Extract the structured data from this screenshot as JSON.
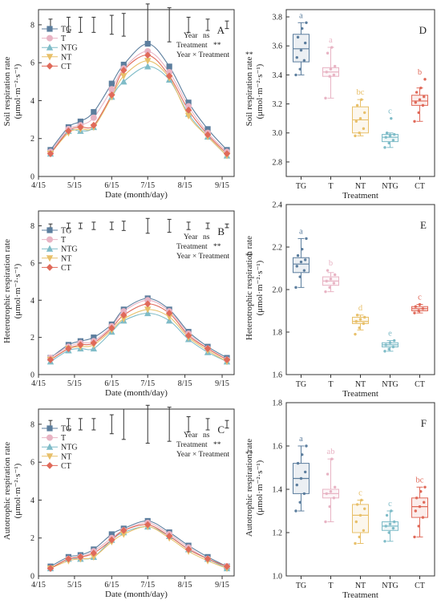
{
  "chart_data": [
    {
      "id": "A",
      "type": "line",
      "panel_label": "A",
      "xlabel": "Date (month/day)",
      "ylabel": "Soil respiration rate",
      "yunit": "(μmol·m⁻²·s⁻¹)",
      "x_ticks": [
        "4/15",
        "5/15",
        "6/15",
        "7/15",
        "8/15",
        "9/15"
      ],
      "y_ticks": [
        0,
        2,
        4,
        6,
        8
      ],
      "ylim": [
        0,
        8.8
      ],
      "x_dates": [
        "4/25",
        "5/10",
        "5/20",
        "5/31",
        "6/15",
        "6/25",
        "7/15",
        "8/2",
        "8/18",
        "9/3",
        "9/19"
      ],
      "series": [
        {
          "name": "TG",
          "color": "#5c7e9e",
          "marker": "square",
          "values": [
            1.4,
            2.6,
            2.9,
            3.4,
            4.9,
            5.9,
            7.0,
            5.8,
            3.9,
            2.5,
            1.4
          ]
        },
        {
          "name": "T",
          "color": "#e8b4c4",
          "marker": "circle",
          "values": [
            1.3,
            2.5,
            2.7,
            3.1,
            4.6,
            5.7,
            6.6,
            5.5,
            3.7,
            2.3,
            1.3
          ]
        },
        {
          "name": "NTG",
          "color": "#7fbcc8",
          "marker": "triangle-up",
          "values": [
            1.2,
            2.4,
            2.4,
            2.6,
            4.2,
            5.0,
            5.8,
            5.1,
            3.3,
            2.1,
            1.1
          ]
        },
        {
          "name": "NT",
          "color": "#e8c06a",
          "marker": "triangle-down",
          "values": [
            1.2,
            2.3,
            2.5,
            2.6,
            4.2,
            5.3,
            6.1,
            5.2,
            3.2,
            2.1,
            1.1
          ]
        },
        {
          "name": "CT",
          "color": "#e06a5a",
          "marker": "diamond",
          "values": [
            1.2,
            2.4,
            2.6,
            2.7,
            4.3,
            5.6,
            6.4,
            5.3,
            3.5,
            2.2,
            1.2
          ]
        }
      ],
      "error_bars": [
        0.3,
        0.4,
        0.4,
        0.4,
        0.5,
        0.6,
        1.1,
        0.9,
        0.4,
        0.3,
        0.2
      ],
      "stats": [
        {
          "label": "Year",
          "value": "ns"
        },
        {
          "label": "Treatment",
          "value": "**"
        },
        {
          "label": "Year × Treatment",
          "value": "**"
        }
      ],
      "legend_position": "top-left"
    },
    {
      "id": "D",
      "type": "box",
      "panel_label": "D",
      "xlabel": "Treatment",
      "ylabel": "Soil respiration rate",
      "yunit": "(μmol·m⁻²·s⁻¹)",
      "categories": [
        "TG",
        "T",
        "NT",
        "NTG",
        "CT"
      ],
      "y_ticks": [
        2.8,
        3.0,
        3.2,
        3.4,
        3.6,
        3.8
      ],
      "ylim": [
        2.7,
        3.85
      ],
      "boxes": [
        {
          "color": "#5c7e9e",
          "letter": "a",
          "min": 3.4,
          "q1": 3.49,
          "median": 3.58,
          "q3": 3.68,
          "max": 3.76,
          "points": [
            3.4,
            3.44,
            3.5,
            3.52,
            3.57,
            3.62,
            3.66,
            3.72,
            3.76
          ]
        },
        {
          "color": "#e8b4c4",
          "letter": "a",
          "min": 3.24,
          "q1": 3.39,
          "median": 3.42,
          "q3": 3.45,
          "max": 3.59,
          "points": [
            3.24,
            3.39,
            3.4,
            3.42,
            3.44,
            3.46,
            3.55,
            3.59
          ]
        },
        {
          "color": "#e8c06a",
          "letter": "bc",
          "min": 2.98,
          "q1": 3.0,
          "median": 3.09,
          "q3": 3.18,
          "max": 3.23,
          "points": [
            2.98,
            3.0,
            3.03,
            3.08,
            3.1,
            3.14,
            3.19,
            3.23
          ]
        },
        {
          "color": "#7fbcc8",
          "letter": "c",
          "min": 2.9,
          "q1": 2.94,
          "median": 2.97,
          "q3": 2.99,
          "max": 3.0,
          "points": [
            2.9,
            2.93,
            2.95,
            2.97,
            2.98,
            2.99,
            3.0,
            3.1
          ]
        },
        {
          "color": "#e06a5a",
          "letter": "b",
          "min": 3.08,
          "q1": 3.19,
          "median": 3.22,
          "q3": 3.26,
          "max": 3.31,
          "points": [
            3.08,
            3.14,
            3.19,
            3.21,
            3.23,
            3.25,
            3.28,
            3.31,
            3.37
          ]
        }
      ]
    },
    {
      "id": "B",
      "type": "line",
      "panel_label": "B",
      "xlabel": "Date (month/day)",
      "ylabel": "Heterotrophic respiration rate",
      "yunit": "(μmol·m⁻²·s⁻¹)",
      "x_ticks": [
        "4/15",
        "5/15",
        "6/15",
        "7/15",
        "8/15",
        "9/15"
      ],
      "y_ticks": [
        0,
        2,
        4,
        6,
        8
      ],
      "ylim": [
        0,
        8.8
      ],
      "x_dates": [
        "4/25",
        "5/10",
        "5/20",
        "5/31",
        "6/15",
        "6/25",
        "7/15",
        "8/2",
        "8/18",
        "9/3",
        "9/19"
      ],
      "series": [
        {
          "name": "TG",
          "color": "#5c7e9e",
          "marker": "square",
          "values": [
            0.9,
            1.6,
            1.8,
            2.0,
            2.7,
            3.5,
            4.1,
            3.5,
            2.3,
            1.5,
            0.9
          ]
        },
        {
          "name": "T",
          "color": "#e8b4c4",
          "marker": "circle",
          "values": [
            0.9,
            1.5,
            1.7,
            1.8,
            2.6,
            3.4,
            4.0,
            3.4,
            2.2,
            1.4,
            0.8
          ]
        },
        {
          "name": "NTG",
          "color": "#7fbcc8",
          "marker": "triangle-up",
          "values": [
            0.7,
            1.3,
            1.4,
            1.4,
            2.3,
            2.9,
            3.3,
            2.9,
            1.9,
            1.2,
            0.7
          ]
        },
        {
          "name": "NT",
          "color": "#e8c06a",
          "marker": "triangle-down",
          "values": [
            0.8,
            1.4,
            1.5,
            1.6,
            2.4,
            3.0,
            3.5,
            3.1,
            2.0,
            1.3,
            0.7
          ]
        },
        {
          "name": "CT",
          "color": "#e06a5a",
          "marker": "diamond",
          "values": [
            0.8,
            1.4,
            1.6,
            1.7,
            2.5,
            3.2,
            3.8,
            3.3,
            2.1,
            1.4,
            0.8
          ]
        }
      ],
      "error_bars": [
        0.1,
        0.15,
        0.15,
        0.2,
        0.2,
        0.25,
        0.4,
        0.35,
        0.2,
        0.15,
        0.1
      ],
      "stats": [
        {
          "label": "Year",
          "value": "ns"
        },
        {
          "label": "Treatment",
          "value": "**"
        },
        {
          "label": "Year × Treatment",
          "value": "**"
        }
      ],
      "legend_position": "top-left"
    },
    {
      "id": "E",
      "type": "box",
      "panel_label": "E",
      "xlabel": "Treatment",
      "ylabel": "Heterotrophic respiration rate",
      "yunit": "(μmol·m⁻²·s⁻¹)",
      "categories": [
        "TG",
        "T",
        "NT",
        "NTG",
        "CT"
      ],
      "y_ticks": [
        1.6,
        1.8,
        2.0,
        2.2,
        2.4
      ],
      "ylim": [
        1.6,
        2.4
      ],
      "boxes": [
        {
          "color": "#5c7e9e",
          "letter": "a",
          "min": 2.01,
          "q1": 2.08,
          "median": 2.12,
          "q3": 2.15,
          "max": 2.24,
          "points": [
            2.01,
            2.06,
            2.09,
            2.11,
            2.13,
            2.14,
            2.16,
            2.19,
            2.24
          ]
        },
        {
          "color": "#e8b4c4",
          "letter": "b",
          "min": 1.99,
          "q1": 2.02,
          "median": 2.04,
          "q3": 2.06,
          "max": 2.08,
          "points": [
            1.99,
            2.01,
            2.03,
            2.04,
            2.05,
            2.07,
            2.09
          ]
        },
        {
          "color": "#e8c06a",
          "letter": "d",
          "min": 1.81,
          "q1": 1.84,
          "median": 1.85,
          "q3": 1.87,
          "max": 1.88,
          "points": [
            1.79,
            1.82,
            1.84,
            1.85,
            1.86,
            1.87,
            1.88
          ]
        },
        {
          "color": "#7fbcc8",
          "letter": "e",
          "min": 1.71,
          "q1": 1.73,
          "median": 1.74,
          "q3": 1.75,
          "max": 1.76,
          "points": [
            1.71,
            1.72,
            1.73,
            1.74,
            1.75,
            1.76
          ]
        },
        {
          "color": "#e06a5a",
          "letter": "c",
          "min": 1.89,
          "q1": 1.9,
          "median": 1.91,
          "q3": 1.92,
          "max": 1.93,
          "points": [
            1.89,
            1.9,
            1.91,
            1.92,
            1.93
          ]
        }
      ]
    },
    {
      "id": "C",
      "type": "line",
      "panel_label": "C",
      "xlabel": "Date (month/day)",
      "ylabel": "Autotrophic respiration rate",
      "yunit": "(μmol·m⁻²·s⁻¹)",
      "x_ticks": [
        "4/15",
        "5/15",
        "6/15",
        "7/15",
        "8/15",
        "9/15"
      ],
      "y_ticks": [
        0,
        2,
        4,
        6,
        8
      ],
      "ylim": [
        0,
        8.8
      ],
      "x_dates": [
        "4/25",
        "5/10",
        "5/20",
        "5/31",
        "6/15",
        "6/25",
        "7/15",
        "8/2",
        "8/18",
        "9/3",
        "9/19"
      ],
      "series": [
        {
          "name": "TG",
          "color": "#5c7e9e",
          "marker": "square",
          "values": [
            0.5,
            1.0,
            1.1,
            1.4,
            2.2,
            2.5,
            2.9,
            2.3,
            1.6,
            1.0,
            0.5
          ]
        },
        {
          "name": "T",
          "color": "#e8b4c4",
          "marker": "circle",
          "values": [
            0.4,
            0.9,
            1.0,
            1.3,
            2.0,
            2.4,
            2.8,
            2.2,
            1.5,
            0.9,
            0.5
          ]
        },
        {
          "name": "NTG",
          "color": "#7fbcc8",
          "marker": "triangle-up",
          "values": [
            0.4,
            0.9,
            0.9,
            1.0,
            1.9,
            2.3,
            2.6,
            2.1,
            1.4,
            0.9,
            0.4
          ]
        },
        {
          "name": "NT",
          "color": "#e8c06a",
          "marker": "triangle-down",
          "values": [
            0.4,
            0.8,
            0.9,
            1.0,
            1.8,
            2.2,
            2.6,
            2.0,
            1.3,
            0.8,
            0.4
          ]
        },
        {
          "name": "CT",
          "color": "#e06a5a",
          "marker": "diamond",
          "values": [
            0.4,
            0.9,
            1.0,
            1.2,
            1.9,
            2.4,
            2.7,
            2.1,
            1.4,
            0.9,
            0.5
          ]
        }
      ],
      "error_bars": [
        0.2,
        0.3,
        0.3,
        0.3,
        0.5,
        0.8,
        1.0,
        0.9,
        0.4,
        0.3,
        0.2
      ],
      "stats": [
        {
          "label": "Year",
          "value": "ns"
        },
        {
          "label": "Treatment",
          "value": "**"
        },
        {
          "label": "Year × Treatment",
          "value": "**"
        }
      ],
      "legend_position": "top-left"
    },
    {
      "id": "F",
      "type": "box",
      "panel_label": "F",
      "xlabel": "Treatment",
      "ylabel": "Autotrophic respiration rate",
      "yunit": "(μmol·m⁻²·s⁻¹)",
      "categories": [
        "TG",
        "T",
        "NT",
        "NTG",
        "CT"
      ],
      "y_ticks": [
        1.0,
        1.2,
        1.4,
        1.6,
        1.8
      ],
      "ylim": [
        1.0,
        1.8
      ],
      "boxes": [
        {
          "color": "#5c7e9e",
          "letter": "a",
          "min": 1.3,
          "q1": 1.38,
          "median": 1.45,
          "q3": 1.52,
          "max": 1.6,
          "points": [
            1.3,
            1.34,
            1.38,
            1.42,
            1.45,
            1.48,
            1.52,
            1.56,
            1.6
          ]
        },
        {
          "color": "#e8b4c4",
          "letter": "ab",
          "min": 1.25,
          "q1": 1.36,
          "median": 1.38,
          "q3": 1.4,
          "max": 1.54,
          "points": [
            1.25,
            1.32,
            1.36,
            1.38,
            1.39,
            1.41,
            1.47,
            1.54
          ]
        },
        {
          "color": "#e8c06a",
          "letter": "c",
          "min": 1.15,
          "q1": 1.2,
          "median": 1.28,
          "q3": 1.33,
          "max": 1.35,
          "points": [
            1.15,
            1.18,
            1.21,
            1.25,
            1.28,
            1.31,
            1.33,
            1.35
          ]
        },
        {
          "color": "#7fbcc8",
          "letter": "c",
          "min": 1.16,
          "q1": 1.21,
          "median": 1.23,
          "q3": 1.25,
          "max": 1.3,
          "points": [
            1.16,
            1.2,
            1.22,
            1.23,
            1.24,
            1.25,
            1.28,
            1.3
          ]
        },
        {
          "color": "#e06a5a",
          "letter": "bc",
          "min": 1.18,
          "q1": 1.27,
          "median": 1.32,
          "q3": 1.36,
          "max": 1.41,
          "points": [
            1.18,
            1.23,
            1.27,
            1.3,
            1.32,
            1.34,
            1.36,
            1.39,
            1.41
          ]
        }
      ]
    }
  ]
}
